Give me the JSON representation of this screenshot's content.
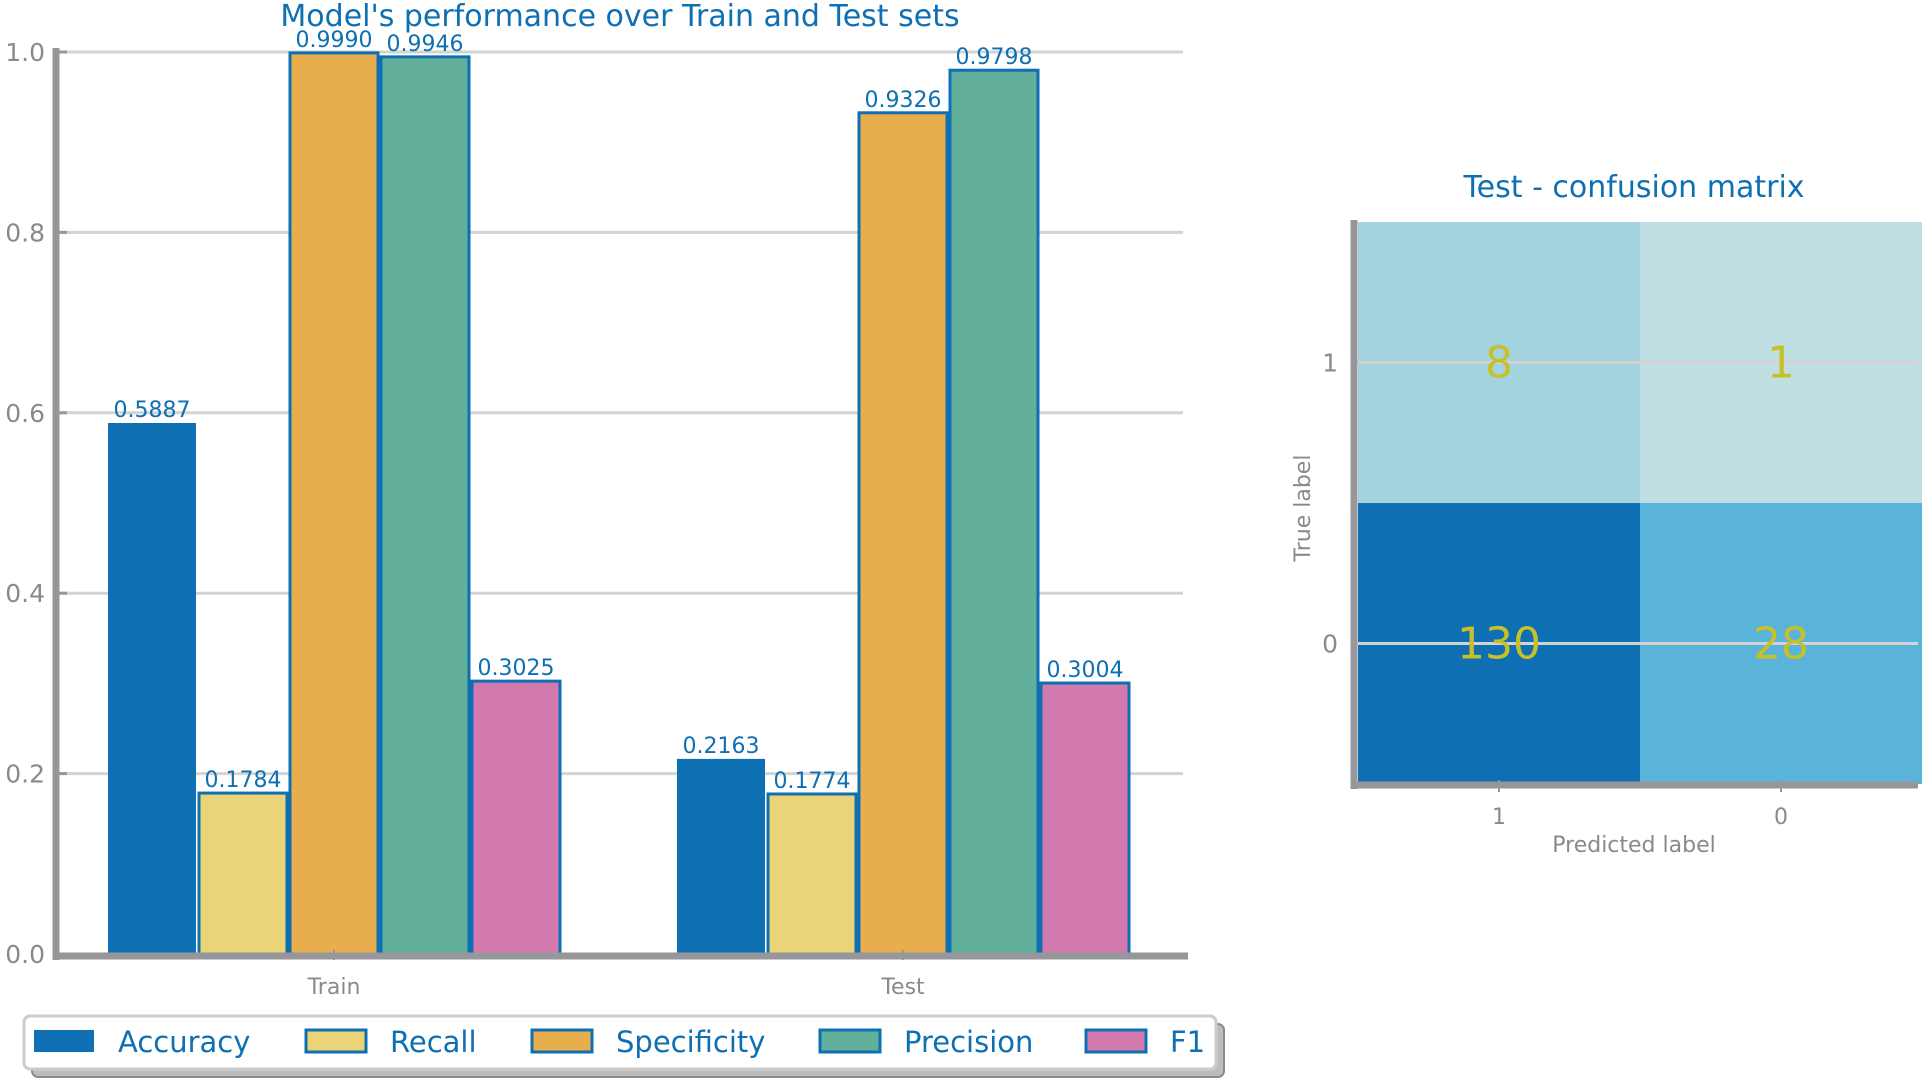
{
  "chart_data": [
    {
      "type": "bar",
      "title": "Model's performance over Train and Test sets",
      "xlabel": "",
      "ylabel": "",
      "categories": [
        "Train",
        "Test"
      ],
      "ylim": [
        0,
        1.0
      ],
      "yticks": [
        "0.0",
        "0.2",
        "0.4",
        "0.6",
        "0.8",
        "1.0"
      ],
      "grid": "horizontal",
      "legend_position": "bottom",
      "series": [
        {
          "name": "Accuracy",
          "values": [
            0.5887,
            0.2163
          ],
          "labels": [
            "0.5887",
            "0.2163"
          ],
          "color": "#0e6fb3",
          "edge": "none"
        },
        {
          "name": "Recall",
          "values": [
            0.1784,
            0.1774
          ],
          "labels": [
            "0.1784",
            "0.1774"
          ],
          "color": "#ead477",
          "edge": "#0e6fb3"
        },
        {
          "name": "Specificity",
          "values": [
            0.999,
            0.9326
          ],
          "labels": [
            "0.9990",
            "0.9326"
          ],
          "color": "#e8ae4d",
          "edge": "#0e6fb3"
        },
        {
          "name": "Precision",
          "values": [
            0.9946,
            0.9798
          ],
          "labels": [
            "0.9946",
            "0.9798"
          ],
          "color": "#62b09b",
          "edge": "#0e6fb3"
        },
        {
          "name": "F1",
          "values": [
            0.3025,
            0.3004
          ],
          "labels": [
            "0.3025",
            "0.3004"
          ],
          "color": "#d27aae",
          "edge": "#0e6fb3"
        }
      ]
    },
    {
      "type": "heatmap",
      "title": "Test - confusion matrix",
      "xlabel": "Predicted label",
      "ylabel": "True label",
      "x_categories": [
        "1",
        "0"
      ],
      "y_categories": [
        "1",
        "0"
      ],
      "matrix": [
        [
          8,
          1
        ],
        [
          130,
          28
        ]
      ],
      "cell_colors": [
        [
          "#a3d3df",
          "#c0dfe2"
        ],
        [
          "#0e6fb3",
          "#5ab4da"
        ]
      ],
      "value_color": "#c8c027"
    }
  ]
}
